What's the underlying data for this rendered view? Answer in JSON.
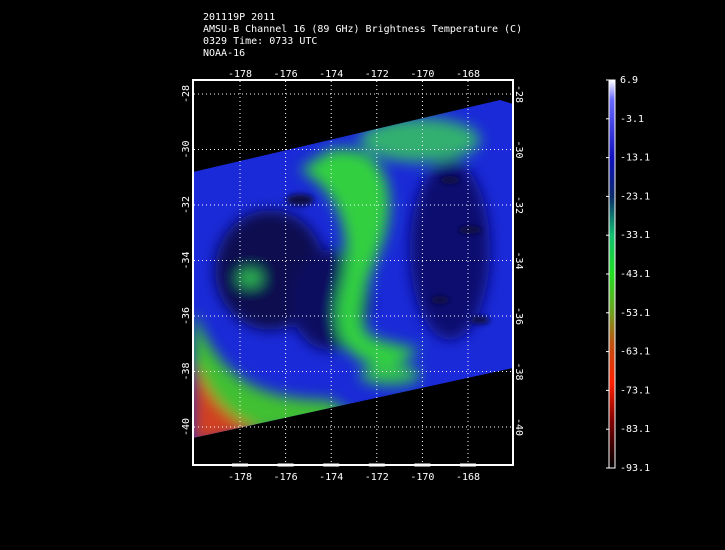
{
  "header": {
    "lines": [
      "201119P 2011",
      "AMSU-B Channel 16 (89 GHz) Brightness Temperature (C)",
      "0329 Time: 0733 UTC",
      "NOAA-16"
    ]
  },
  "map": {
    "lon_ticks": [
      -178,
      -176,
      -174,
      -172,
      -170,
      -168
    ],
    "lat_ticks": [
      -28,
      -30,
      -32,
      -34,
      -36,
      -38,
      -40
    ]
  },
  "colorbar": {
    "range": [
      6.9,
      -93.1
    ],
    "ticks": [
      6.9,
      -3.1,
      -13.1,
      -23.1,
      -33.1,
      -43.1,
      -53.1,
      -63.1,
      -73.1,
      -83.1,
      -93.1
    ]
  }
}
